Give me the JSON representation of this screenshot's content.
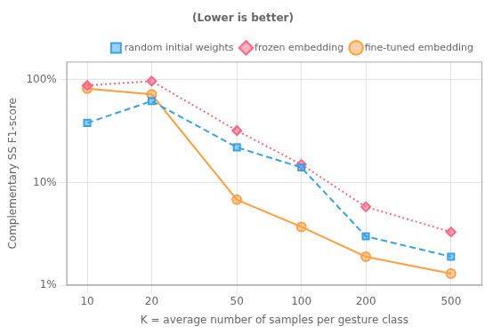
{
  "chart_data": {
    "type": "line",
    "title": "(Lower is better)",
    "x_label": "K = average number of samples per gesture class",
    "y_label": "Complementary SS F1-score",
    "x": [
      10,
      20,
      50,
      100,
      200,
      500
    ],
    "series": [
      {
        "name": "random initial weights",
        "values": [
          0.38,
          0.62,
          0.22,
          0.14,
          0.03,
          0.019
        ],
        "marker": "square",
        "line_style": "dashed"
      },
      {
        "name": "frozen embedding",
        "values": [
          0.88,
          0.97,
          0.32,
          0.15,
          0.058,
          0.033
        ],
        "marker": "diamond",
        "line_style": "dotted"
      },
      {
        "name": "fine-tuned embedding",
        "values": [
          0.82,
          0.72,
          0.068,
          0.037,
          0.019,
          0.013
        ],
        "marker": "circle",
        "line_style": "solid"
      }
    ],
    "log": true,
    "xlim": [
      8,
      700
    ],
    "ylim": [
      0.01,
      1.5
    ],
    "xticks": [
      10,
      20,
      50,
      100,
      200,
      500
    ],
    "yticks": [
      {
        "value": 0.01,
        "label": "1%"
      },
      {
        "value": 0.1,
        "label": "10%"
      },
      {
        "value": 1,
        "label": "100%"
      }
    ],
    "grid": true,
    "legend": "upper right"
  }
}
